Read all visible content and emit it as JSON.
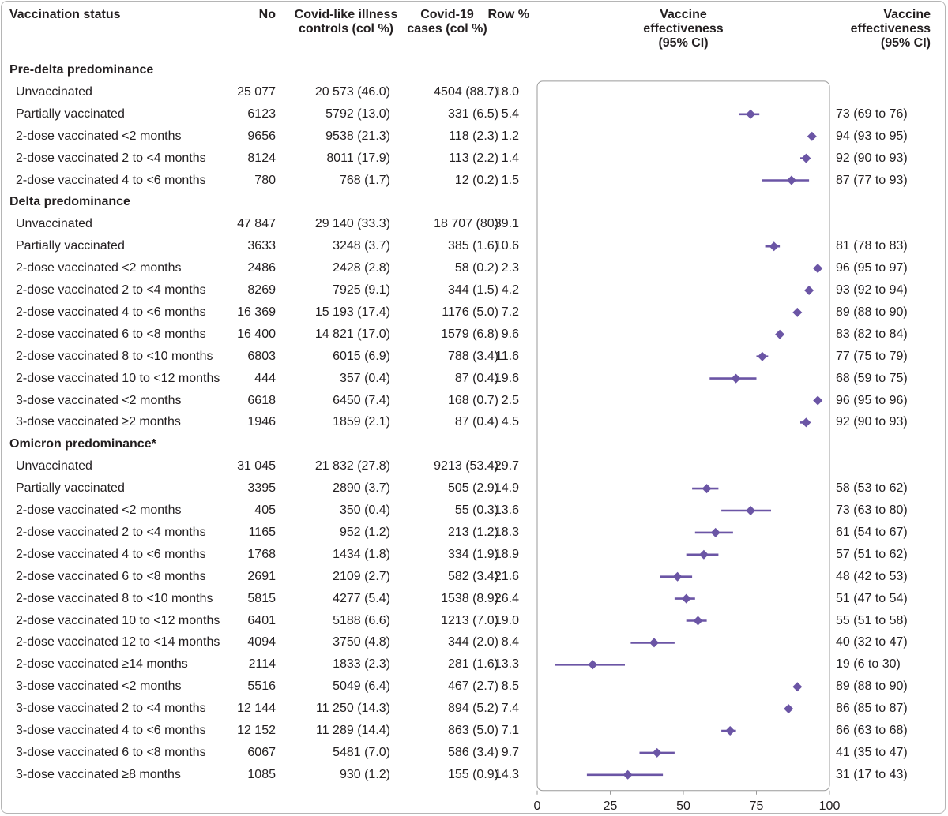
{
  "headers": {
    "status": "Vaccination status",
    "no": "No",
    "controls_1": "Covid-like illness",
    "controls_2": "controls (col %)",
    "cases_1": "Covid-19",
    "cases_2": "cases (col %)",
    "rowpct": "Row %",
    "plot_1": "Vaccine",
    "plot_2": "effectiveness",
    "plot_3": "(95% CI)",
    "ve_1": "Vaccine",
    "ve_2": "effectiveness",
    "ve_3": "(95% CI)"
  },
  "colors": {
    "marker": "#6b55a5",
    "text": "#231f20",
    "border": "#b5b5b5"
  },
  "chart_data": {
    "type": "forest",
    "xlabel": "Vaccine effectiveness (95% CI)",
    "xlim": [
      0,
      100
    ],
    "xticks": [
      0,
      25,
      50,
      75,
      100
    ],
    "sections": [
      {
        "title": "Pre-delta predominance",
        "rows": [
          {
            "label": "Unvaccinated",
            "no": "25 077",
            "controls": "20 573 (46.0)",
            "cases": "4504 (88.7)",
            "rowpct": "18.0",
            "ve_text": "",
            "est": null,
            "lo": null,
            "hi": null
          },
          {
            "label": "Partially vaccinated",
            "no": "6123",
            "controls": "5792 (13.0)",
            "cases": "331 (6.5)",
            "rowpct": "5.4",
            "ve_text": "73 (69 to 76)",
            "est": 73,
            "lo": 69,
            "hi": 76
          },
          {
            "label": "2-dose vaccinated <2 months",
            "no": "9656",
            "controls": "9538 (21.3)",
            "cases": "118 (2.3)",
            "rowpct": "1.2",
            "ve_text": "94 (93 to 95)",
            "est": 94,
            "lo": 93,
            "hi": 95
          },
          {
            "label": "2-dose vaccinated 2 to <4 months",
            "no": "8124",
            "controls": "8011 (17.9)",
            "cases": "113 (2.2)",
            "rowpct": "1.4",
            "ve_text": "92 (90 to 93)",
            "est": 92,
            "lo": 90,
            "hi": 93
          },
          {
            "label": "2-dose vaccinated 4 to <6 months",
            "no": "780",
            "controls": "768 (1.7)",
            "cases": "12 (0.2)",
            "rowpct": "1.5",
            "ve_text": "87 (77 to 93)",
            "est": 87,
            "lo": 77,
            "hi": 93
          }
        ]
      },
      {
        "title": "Delta predominance",
        "rows": [
          {
            "label": "Unvaccinated",
            "no": "47 847",
            "controls": "29 140 (33.3)",
            "cases": "18 707 (80)",
            "rowpct": "39.1",
            "ve_text": "",
            "est": null,
            "lo": null,
            "hi": null
          },
          {
            "label": "Partially vaccinated",
            "no": "3633",
            "controls": "3248 (3.7)",
            "cases": "385 (1.6)",
            "rowpct": "10.6",
            "ve_text": "81 (78 to 83)",
            "est": 81,
            "lo": 78,
            "hi": 83
          },
          {
            "label": "2-dose vaccinated <2 months",
            "no": "2486",
            "controls": "2428 (2.8)",
            "cases": "58 (0.2)",
            "rowpct": "2.3",
            "ve_text": "96 (95 to 97)",
            "est": 96,
            "lo": 95,
            "hi": 97
          },
          {
            "label": "2-dose vaccinated 2 to <4 months",
            "no": "8269",
            "controls": "7925 (9.1)",
            "cases": "344 (1.5)",
            "rowpct": "4.2",
            "ve_text": "93 (92 to 94)",
            "est": 93,
            "lo": 92,
            "hi": 94
          },
          {
            "label": "2-dose vaccinated 4 to <6 months",
            "no": "16 369",
            "controls": "15 193 (17.4)",
            "cases": "1176 (5.0)",
            "rowpct": "7.2",
            "ve_text": "89 (88 to 90)",
            "est": 89,
            "lo": 88,
            "hi": 90
          },
          {
            "label": "2-dose vaccinated 6 to <8 months",
            "no": "16 400",
            "controls": "14 821 (17.0)",
            "cases": "1579 (6.8)",
            "rowpct": "9.6",
            "ve_text": "83 (82 to 84)",
            "est": 83,
            "lo": 82,
            "hi": 84
          },
          {
            "label": "2-dose vaccinated 8 to <10 months",
            "no": "6803",
            "controls": "6015 (6.9)",
            "cases": "788 (3.4)",
            "rowpct": "11.6",
            "ve_text": "77 (75 to 79)",
            "est": 77,
            "lo": 75,
            "hi": 79
          },
          {
            "label": "2-dose vaccinated 10 to <12 months",
            "no": "444",
            "controls": "357 (0.4)",
            "cases": "87 (0.4)",
            "rowpct": "19.6",
            "ve_text": "68 (59 to 75)",
            "est": 68,
            "lo": 59,
            "hi": 75
          },
          {
            "label": "3-dose vaccinated <2 months",
            "no": "6618",
            "controls": "6450 (7.4)",
            "cases": "168 (0.7)",
            "rowpct": "2.5",
            "ve_text": "96 (95 to 96)",
            "est": 96,
            "lo": 95,
            "hi": 96
          },
          {
            "label": "3-dose vaccinated ≥2 months",
            "no": "1946",
            "controls": "1859 (2.1)",
            "cases": "87 (0.4)",
            "rowpct": "4.5",
            "ve_text": "92 (90 to 93)",
            "est": 92,
            "lo": 90,
            "hi": 93
          }
        ]
      },
      {
        "title": "Omicron predominance*",
        "rows": [
          {
            "label": "Unvaccinated",
            "no": "31 045",
            "controls": "21 832 (27.8)",
            "cases": "9213 (53.4)",
            "rowpct": "29.7",
            "ve_text": "",
            "est": null,
            "lo": null,
            "hi": null
          },
          {
            "label": "Partially vaccinated",
            "no": "3395",
            "controls": "2890 (3.7)",
            "cases": "505 (2.9)",
            "rowpct": "14.9",
            "ve_text": "58 (53 to 62)",
            "est": 58,
            "lo": 53,
            "hi": 62
          },
          {
            "label": "2-dose vaccinated <2 months",
            "no": "405",
            "controls": "350 (0.4)",
            "cases": "55 (0.3)",
            "rowpct": "13.6",
            "ve_text": "73 (63 to 80)",
            "est": 73,
            "lo": 63,
            "hi": 80
          },
          {
            "label": "2-dose vaccinated 2 to <4 months",
            "no": "1165",
            "controls": "952 (1.2)",
            "cases": "213 (1.2)",
            "rowpct": "18.3",
            "ve_text": "61 (54 to 67)",
            "est": 61,
            "lo": 54,
            "hi": 67
          },
          {
            "label": "2-dose vaccinated 4 to <6 months",
            "no": "1768",
            "controls": "1434 (1.8)",
            "cases": "334 (1.9)",
            "rowpct": "18.9",
            "ve_text": "57 (51 to 62)",
            "est": 57,
            "lo": 51,
            "hi": 62
          },
          {
            "label": "2-dose vaccinated 6 to <8 months",
            "no": "2691",
            "controls": "2109 (2.7)",
            "cases": "582 (3.4)",
            "rowpct": "21.6",
            "ve_text": "48 (42 to 53)",
            "est": 48,
            "lo": 42,
            "hi": 53
          },
          {
            "label": "2-dose vaccinated 8 to <10 months",
            "no": "5815",
            "controls": "4277 (5.4)",
            "cases": "1538 (8.9)",
            "rowpct": "26.4",
            "ve_text": "51 (47 to 54)",
            "est": 51,
            "lo": 47,
            "hi": 54
          },
          {
            "label": "2-dose vaccinated 10 to <12 months",
            "no": "6401",
            "controls": "5188 (6.6)",
            "cases": "1213 (7.0)",
            "rowpct": "19.0",
            "ve_text": "55 (51 to 58)",
            "est": 55,
            "lo": 51,
            "hi": 58
          },
          {
            "label": "2-dose vaccinated 12 to <14 months",
            "no": "4094",
            "controls": "3750 (4.8)",
            "cases": "344 (2.0)",
            "rowpct": "8.4",
            "ve_text": "40 (32 to 47)",
            "est": 40,
            "lo": 32,
            "hi": 47
          },
          {
            "label": "2-dose vaccinated ≥14 months",
            "no": "2114",
            "controls": "1833 (2.3)",
            "cases": "281 (1.6)",
            "rowpct": "13.3",
            "ve_text": "19 (6 to 30)",
            "est": 19,
            "lo": 6,
            "hi": 30
          },
          {
            "label": "3-dose vaccinated <2 months",
            "no": "5516",
            "controls": "5049 (6.4)",
            "cases": "467 (2.7)",
            "rowpct": "8.5",
            "ve_text": "89 (88 to 90)",
            "est": 89,
            "lo": 88,
            "hi": 90
          },
          {
            "label": "3-dose vaccinated 2 to <4 months",
            "no": "12 144",
            "controls": "11 250 (14.3)",
            "cases": "894 (5.2)",
            "rowpct": "7.4",
            "ve_text": "86 (85 to 87)",
            "est": 86,
            "lo": 85,
            "hi": 87
          },
          {
            "label": "3-dose vaccinated 4 to <6 months",
            "no": "12 152",
            "controls": "11 289 (14.4)",
            "cases": "863 (5.0)",
            "rowpct": "7.1",
            "ve_text": "66 (63 to 68)",
            "est": 66,
            "lo": 63,
            "hi": 68
          },
          {
            "label": "3-dose vaccinated 6 to <8 months",
            "no": "6067",
            "controls": "5481 (7.0)",
            "cases": "586 (3.4)",
            "rowpct": "9.7",
            "ve_text": "41 (35 to 47)",
            "est": 41,
            "lo": 35,
            "hi": 47
          },
          {
            "label": "3-dose vaccinated ≥8 months",
            "no": "1085",
            "controls": "930 (1.2)",
            "cases": "155 (0.9)",
            "rowpct": "14.3",
            "ve_text": "31 (17 to 43)",
            "est": 31,
            "lo": 17,
            "hi": 43
          }
        ]
      }
    ]
  }
}
